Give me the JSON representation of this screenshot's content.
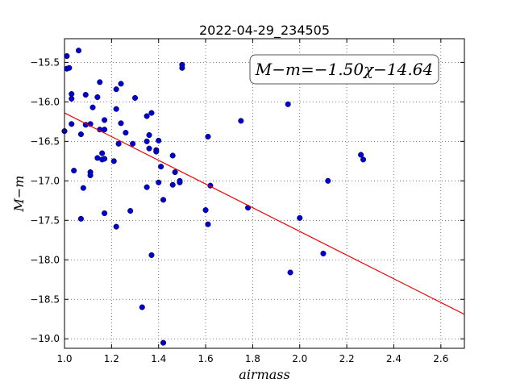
{
  "chart_data": {
    "type": "scatter",
    "title": "2022-04-29_234505",
    "xlabel": "airmass",
    "ylabel": "M−m",
    "xlim": [
      1.0,
      2.7
    ],
    "ylim": [
      -19.12,
      -15.2
    ],
    "xticks": [
      1.0,
      1.2,
      1.4,
      1.6,
      1.8,
      2.0,
      2.2,
      2.4,
      2.6
    ],
    "xtick_labels": [
      "1.0",
      "1.2",
      "1.4",
      "1.6",
      "1.8",
      "2.0",
      "2.2",
      "2.4",
      "2.6"
    ],
    "yticks": [
      -15.5,
      -16.0,
      -16.5,
      -17.0,
      -17.5,
      -18.0,
      -18.5,
      -19.0
    ],
    "ytick_labels": [
      "−15.5",
      "−16.0",
      "−16.5",
      "−17.0",
      "−17.5",
      "−18.0",
      "−18.5",
      "−19.0"
    ],
    "grid": true,
    "annotation": "M−m=−1.50χ−14.64",
    "fit": {
      "slope": -1.5,
      "intercept": -14.64,
      "color": "#ee0000"
    },
    "point_color": "#0000cc",
    "points": [
      [
        1.0,
        -16.37
      ],
      [
        1.01,
        -15.42
      ],
      [
        1.01,
        -15.58
      ],
      [
        1.02,
        -15.57
      ],
      [
        1.03,
        -16.28
      ],
      [
        1.03,
        -15.96
      ],
      [
        1.03,
        -15.9
      ],
      [
        1.04,
        -16.87
      ],
      [
        1.06,
        -15.35
      ],
      [
        1.07,
        -17.48
      ],
      [
        1.07,
        -16.41
      ],
      [
        1.08,
        -17.09
      ],
      [
        1.09,
        -15.91
      ],
      [
        1.09,
        -16.29
      ],
      [
        1.11,
        -16.28
      ],
      [
        1.11,
        -16.89
      ],
      [
        1.11,
        -16.93
      ],
      [
        1.12,
        -16.07
      ],
      [
        1.14,
        -15.94
      ],
      [
        1.14,
        -16.71
      ],
      [
        1.15,
        -15.75
      ],
      [
        1.15,
        -16.35
      ],
      [
        1.16,
        -16.65
      ],
      [
        1.16,
        -16.73
      ],
      [
        1.17,
        -16.35
      ],
      [
        1.17,
        -16.23
      ],
      [
        1.17,
        -16.72
      ],
      [
        1.17,
        -17.41
      ],
      [
        1.21,
        -16.75
      ],
      [
        1.22,
        -16.09
      ],
      [
        1.22,
        -15.84
      ],
      [
        1.22,
        -17.58
      ],
      [
        1.23,
        -16.53
      ],
      [
        1.24,
        -16.27
      ],
      [
        1.24,
        -15.77
      ],
      [
        1.26,
        -16.39
      ],
      [
        1.28,
        -17.38
      ],
      [
        1.29,
        -16.53
      ],
      [
        1.3,
        -15.95
      ],
      [
        1.33,
        -18.6
      ],
      [
        1.35,
        -16.18
      ],
      [
        1.35,
        -16.5
      ],
      [
        1.35,
        -17.08
      ],
      [
        1.36,
        -16.42
      ],
      [
        1.36,
        -16.59
      ],
      [
        1.37,
        -16.14
      ],
      [
        1.37,
        -17.94
      ],
      [
        1.39,
        -16.61
      ],
      [
        1.39,
        -16.63
      ],
      [
        1.4,
        -16.49
      ],
      [
        1.4,
        -17.02
      ],
      [
        1.41,
        -16.82
      ],
      [
        1.42,
        -17.24
      ],
      [
        1.42,
        -19.05
      ],
      [
        1.46,
        -16.68
      ],
      [
        1.46,
        -17.05
      ],
      [
        1.47,
        -16.89
      ],
      [
        1.49,
        -17.02
      ],
      [
        1.49,
        -17.0
      ],
      [
        1.5,
        -15.53
      ],
      [
        1.5,
        -15.57
      ],
      [
        1.6,
        -17.37
      ],
      [
        1.61,
        -16.44
      ],
      [
        1.61,
        -17.55
      ],
      [
        1.62,
        -17.06
      ],
      [
        1.75,
        -16.24
      ],
      [
        1.78,
        -17.34
      ],
      [
        1.95,
        -16.03
      ],
      [
        1.96,
        -18.16
      ],
      [
        2.0,
        -17.47
      ],
      [
        2.1,
        -17.92
      ],
      [
        2.12,
        -17.0
      ],
      [
        2.26,
        -16.67
      ],
      [
        2.27,
        -16.73
      ]
    ]
  }
}
